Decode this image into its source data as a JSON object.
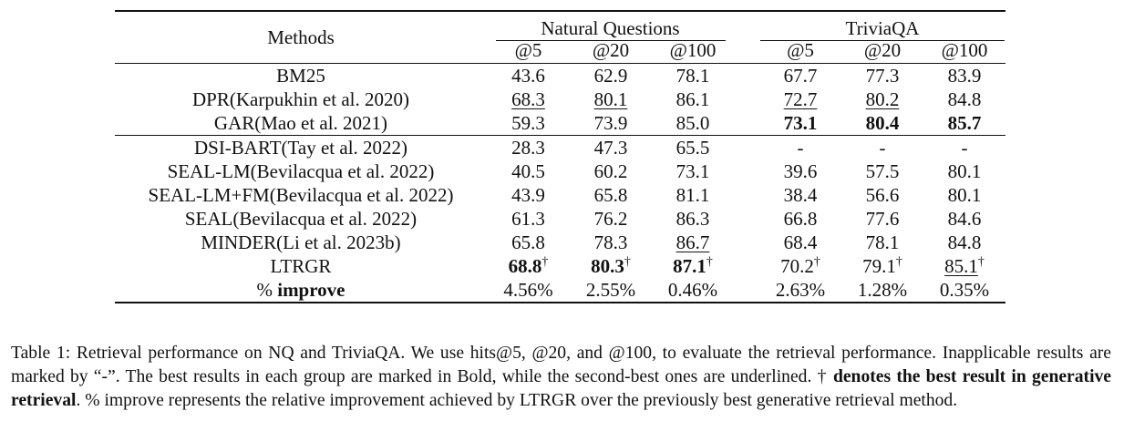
{
  "table": {
    "header": {
      "methods": "Methods",
      "groups": [
        "Natural Questions",
        "TriviaQA"
      ],
      "sub": [
        "@5",
        "@20",
        "@100",
        "@5",
        "@20",
        "@100"
      ]
    },
    "group1": [
      {
        "method": "BM25",
        "cells": [
          {
            "v": "43.6"
          },
          {
            "v": "62.9"
          },
          {
            "v": "78.1"
          },
          {
            "v": "67.7"
          },
          {
            "v": "77.3"
          },
          {
            "v": "83.9"
          }
        ]
      },
      {
        "method": "DPR(Karpukhin et al. 2020)",
        "cells": [
          {
            "v": "68.3",
            "ul": true
          },
          {
            "v": "80.1",
            "ul": true
          },
          {
            "v": "86.1"
          },
          {
            "v": "72.7",
            "ul": true
          },
          {
            "v": "80.2",
            "ul": true
          },
          {
            "v": "84.8"
          }
        ]
      },
      {
        "method": "GAR(Mao et al. 2021)",
        "cells": [
          {
            "v": "59.3"
          },
          {
            "v": "73.9"
          },
          {
            "v": "85.0"
          },
          {
            "v": "73.1",
            "bold": true
          },
          {
            "v": "80.4",
            "bold": true
          },
          {
            "v": "85.7",
            "bold": true
          }
        ]
      }
    ],
    "group2": [
      {
        "method": "DSI-BART(Tay et al. 2022)",
        "cells": [
          {
            "v": "28.3"
          },
          {
            "v": "47.3"
          },
          {
            "v": "65.5"
          },
          {
            "v": "-"
          },
          {
            "v": "-"
          },
          {
            "v": "-"
          }
        ]
      },
      {
        "method": "SEAL-LM(Bevilacqua et al. 2022)",
        "cells": [
          {
            "v": "40.5"
          },
          {
            "v": "60.2"
          },
          {
            "v": "73.1"
          },
          {
            "v": "39.6"
          },
          {
            "v": "57.5"
          },
          {
            "v": "80.1"
          }
        ]
      },
      {
        "method": "SEAL-LM+FM(Bevilacqua et al. 2022)",
        "cells": [
          {
            "v": "43.9"
          },
          {
            "v": "65.8"
          },
          {
            "v": "81.1"
          },
          {
            "v": "38.4"
          },
          {
            "v": "56.6"
          },
          {
            "v": "80.1"
          }
        ]
      },
      {
        "method": "SEAL(Bevilacqua et al. 2022)",
        "cells": [
          {
            "v": "61.3"
          },
          {
            "v": "76.2"
          },
          {
            "v": "86.3"
          },
          {
            "v": "66.8"
          },
          {
            "v": "77.6"
          },
          {
            "v": "84.6"
          }
        ]
      },
      {
        "method": "MINDER(Li et al. 2023b)",
        "cells": [
          {
            "v": "65.8"
          },
          {
            "v": "78.3"
          },
          {
            "v": "86.7",
            "ul": true
          },
          {
            "v": "68.4"
          },
          {
            "v": "78.1"
          },
          {
            "v": "84.8"
          }
        ]
      },
      {
        "method": "LTRGR",
        "cells": [
          {
            "v": "68.8",
            "bold": true,
            "dagger": true
          },
          {
            "v": "80.3",
            "bold": true,
            "dagger": true
          },
          {
            "v": "87.1",
            "bold": true,
            "dagger": true
          },
          {
            "v": "70.2",
            "dagger": true
          },
          {
            "v": "79.1",
            "dagger": true
          },
          {
            "v": "85.1",
            "ul": true,
            "dagger": true
          }
        ]
      }
    ],
    "improve": {
      "prefix": "%",
      "label": "improve",
      "cells": [
        "4.56%",
        "2.55%",
        "0.46%",
        "2.63%",
        "1.28%",
        "0.35%"
      ]
    },
    "dagger_symbol": "†"
  },
  "caption": {
    "p1": "Table 1: Retrieval performance on NQ and TriviaQA. We use hits@5, @20, and @100, to evaluate the retrieval performance. Inapplicable results are marked by “-”. The best results in each group are marked in Bold, while the second-best ones are underlined. ",
    "dagger": "†",
    "bold": "denotes the best result in generative retrieval",
    "p2": ". % improve represents the relative improvement achieved by LTRGR over the previously best generative retrieval method."
  }
}
